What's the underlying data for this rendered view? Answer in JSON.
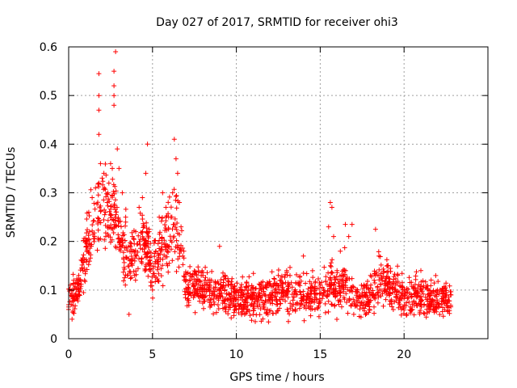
{
  "chart_data": {
    "type": "scatter",
    "title": "Day 027 of 2017, SRMTID for receiver ohi3",
    "xlabel": "GPS time / hours",
    "ylabel": "SRMTID / TECUs",
    "xlim": [
      0,
      25
    ],
    "ylim": [
      0,
      0.6
    ],
    "xticks": [
      0,
      5,
      10,
      15,
      20
    ],
    "yticks": [
      0,
      0.1,
      0.2,
      0.3,
      0.4,
      0.5,
      0.6
    ],
    "grid": true,
    "marker": "+",
    "color": "#ff0000",
    "series": [
      {
        "name": "SRMTID",
        "trend": [
          {
            "x": 0.0,
            "y": 0.08,
            "spread": 0.03
          },
          {
            "x": 0.5,
            "y": 0.1,
            "spread": 0.03
          },
          {
            "x": 1.0,
            "y": 0.17,
            "spread": 0.05
          },
          {
            "x": 1.5,
            "y": 0.24,
            "spread": 0.07
          },
          {
            "x": 2.0,
            "y": 0.27,
            "spread": 0.07
          },
          {
            "x": 2.5,
            "y": 0.26,
            "spread": 0.07
          },
          {
            "x": 3.0,
            "y": 0.22,
            "spread": 0.07
          },
          {
            "x": 3.5,
            "y": 0.16,
            "spread": 0.06
          },
          {
            "x": 4.0,
            "y": 0.18,
            "spread": 0.06
          },
          {
            "x": 4.5,
            "y": 0.2,
            "spread": 0.06
          },
          {
            "x": 5.0,
            "y": 0.15,
            "spread": 0.06
          },
          {
            "x": 5.5,
            "y": 0.17,
            "spread": 0.06
          },
          {
            "x": 6.0,
            "y": 0.22,
            "spread": 0.07
          },
          {
            "x": 6.5,
            "y": 0.22,
            "spread": 0.07
          },
          {
            "x": 7.0,
            "y": 0.11,
            "spread": 0.04
          },
          {
            "x": 8.0,
            "y": 0.1,
            "spread": 0.04
          },
          {
            "x": 9.0,
            "y": 0.1,
            "spread": 0.04
          },
          {
            "x": 10.0,
            "y": 0.085,
            "spread": 0.035
          },
          {
            "x": 11.0,
            "y": 0.08,
            "spread": 0.035
          },
          {
            "x": 12.0,
            "y": 0.09,
            "spread": 0.04
          },
          {
            "x": 13.0,
            "y": 0.095,
            "spread": 0.04
          },
          {
            "x": 14.0,
            "y": 0.09,
            "spread": 0.04
          },
          {
            "x": 15.0,
            "y": 0.09,
            "spread": 0.04
          },
          {
            "x": 15.5,
            "y": 0.12,
            "spread": 0.05
          },
          {
            "x": 16.0,
            "y": 0.1,
            "spread": 0.04
          },
          {
            "x": 16.5,
            "y": 0.12,
            "spread": 0.05
          },
          {
            "x": 17.0,
            "y": 0.08,
            "spread": 0.035
          },
          {
            "x": 18.0,
            "y": 0.09,
            "spread": 0.04
          },
          {
            "x": 18.5,
            "y": 0.12,
            "spread": 0.05
          },
          {
            "x": 19.0,
            "y": 0.11,
            "spread": 0.04
          },
          {
            "x": 20.0,
            "y": 0.09,
            "spread": 0.04
          },
          {
            "x": 21.0,
            "y": 0.085,
            "spread": 0.035
          },
          {
            "x": 22.0,
            "y": 0.085,
            "spread": 0.035
          },
          {
            "x": 22.8,
            "y": 0.08,
            "spread": 0.03
          }
        ],
        "points": [
          [
            0.0,
            0.06
          ],
          [
            0.1,
            0.11
          ],
          [
            0.2,
            0.04
          ],
          [
            0.3,
            0.12
          ],
          [
            0.4,
            0.09
          ],
          [
            0.6,
            0.13
          ],
          [
            0.8,
            0.16
          ],
          [
            1.0,
            0.2
          ],
          [
            1.2,
            0.26
          ],
          [
            1.4,
            0.29
          ],
          [
            1.6,
            0.31
          ],
          [
            1.8,
            0.32
          ],
          [
            1.8,
            0.42
          ],
          [
            1.8,
            0.47
          ],
          [
            1.8,
            0.5
          ],
          [
            1.8,
            0.545
          ],
          [
            1.9,
            0.36
          ],
          [
            2.0,
            0.33
          ],
          [
            2.1,
            0.34
          ],
          [
            2.2,
            0.26
          ],
          [
            2.3,
            0.28
          ],
          [
            2.4,
            0.32
          ],
          [
            2.5,
            0.36
          ],
          [
            2.6,
            0.35
          ],
          [
            2.7,
            0.48
          ],
          [
            2.7,
            0.5
          ],
          [
            2.7,
            0.52
          ],
          [
            2.7,
            0.55
          ],
          [
            2.8,
            0.59
          ],
          [
            2.9,
            0.39
          ],
          [
            3.0,
            0.35
          ],
          [
            3.2,
            0.3
          ],
          [
            3.4,
            0.25
          ],
          [
            3.5,
            0.13
          ],
          [
            3.6,
            0.05
          ],
          [
            3.8,
            0.21
          ],
          [
            4.0,
            0.22
          ],
          [
            4.2,
            0.27
          ],
          [
            4.4,
            0.29
          ],
          [
            4.6,
            0.34
          ],
          [
            4.7,
            0.4
          ],
          [
            4.8,
            0.22
          ],
          [
            5.0,
            0.1
          ],
          [
            5.2,
            0.18
          ],
          [
            5.4,
            0.25
          ],
          [
            5.6,
            0.3
          ],
          [
            5.8,
            0.27
          ],
          [
            5.9,
            0.15
          ],
          [
            6.0,
            0.19
          ],
          [
            6.1,
            0.25
          ],
          [
            6.2,
            0.3
          ],
          [
            6.3,
            0.41
          ],
          [
            6.4,
            0.37
          ],
          [
            6.5,
            0.34
          ],
          [
            6.6,
            0.28
          ],
          [
            6.7,
            0.23
          ],
          [
            6.8,
            0.17
          ],
          [
            7.0,
            0.12
          ],
          [
            7.5,
            0.09
          ],
          [
            8.0,
            0.13
          ],
          [
            8.5,
            0.07
          ],
          [
            9.0,
            0.19
          ],
          [
            9.5,
            0.08
          ],
          [
            10.0,
            0.06
          ],
          [
            10.5,
            0.1
          ],
          [
            11.0,
            0.05
          ],
          [
            11.5,
            0.11
          ],
          [
            12.0,
            0.08
          ],
          [
            12.5,
            0.13
          ],
          [
            13.0,
            0.14
          ],
          [
            13.5,
            0.06
          ],
          [
            14.0,
            0.17
          ],
          [
            14.5,
            0.08
          ],
          [
            15.0,
            0.11
          ],
          [
            15.5,
            0.23
          ],
          [
            15.6,
            0.28
          ],
          [
            15.7,
            0.27
          ],
          [
            15.8,
            0.21
          ],
          [
            16.0,
            0.14
          ],
          [
            16.2,
            0.18
          ],
          [
            16.5,
            0.235
          ],
          [
            16.7,
            0.21
          ],
          [
            16.9,
            0.235
          ],
          [
            17.0,
            0.05
          ],
          [
            17.5,
            0.09
          ],
          [
            18.0,
            0.13
          ],
          [
            18.3,
            0.225
          ],
          [
            18.5,
            0.17
          ],
          [
            18.7,
            0.12
          ],
          [
            19.0,
            0.15
          ],
          [
            19.5,
            0.11
          ],
          [
            20.0,
            0.09
          ],
          [
            20.5,
            0.06
          ],
          [
            21.0,
            0.14
          ],
          [
            21.5,
            0.07
          ],
          [
            22.0,
            0.1
          ],
          [
            22.5,
            0.08
          ],
          [
            22.8,
            0.09
          ]
        ]
      }
    ]
  }
}
